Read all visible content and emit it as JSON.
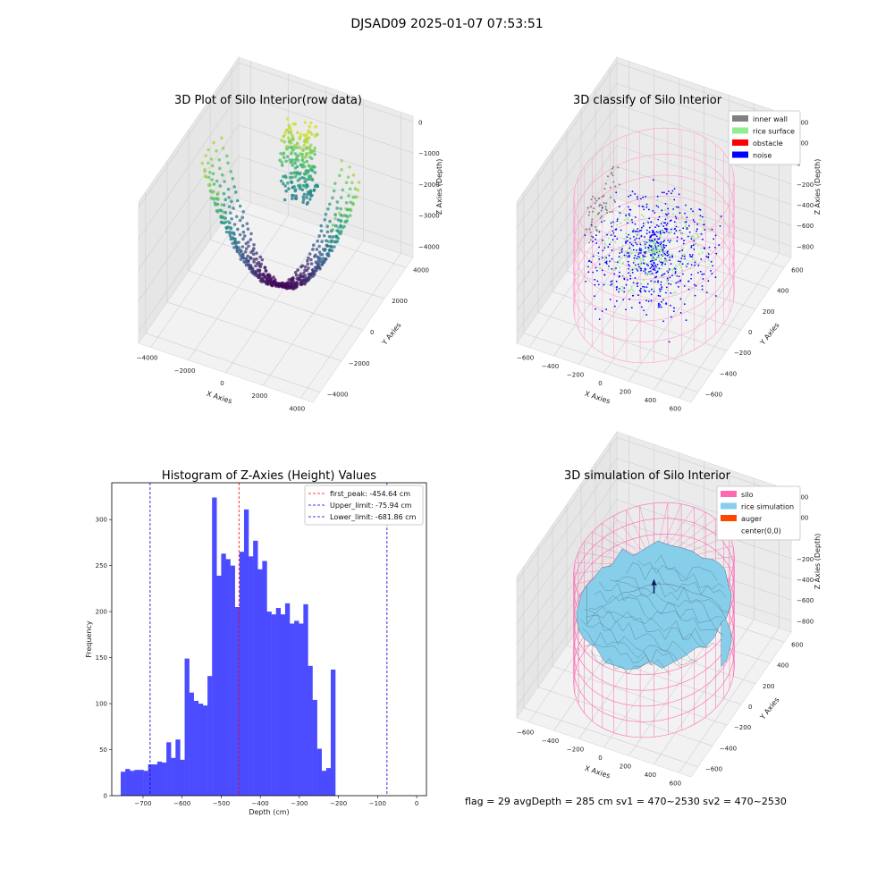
{
  "suptitle": "DJSAD09 2025-01-07 07:53:51",
  "footer": "flag = 29  avgDepth = 285 cm  sv1 = 470~2530  sv2 = 470~2530",
  "chart_data": [
    {
      "type": "scatter",
      "projection": "3d",
      "title": "3D Plot of Silo Interior(row data)",
      "xlabel": "X Axies",
      "ylabel": "Y Axies",
      "zlabel": "Z Axies (Depth)",
      "xticks": [
        "−4000",
        "−2000",
        "0",
        "2000",
        "4000"
      ],
      "yticks": [
        "−4000",
        "−2000",
        "0",
        "2000",
        "4000"
      ],
      "zticks": [
        "0",
        "−1000",
        "−2000",
        "−3000",
        "−4000"
      ],
      "xlim": [
        -4500,
        4500
      ],
      "ylim": [
        -4500,
        4500
      ],
      "zlim": [
        -4500,
        200
      ],
      "colormap": "viridis"
    },
    {
      "type": "scatter",
      "projection": "3d",
      "title": "3D classify of Silo Interior",
      "xlabel": "X Axies",
      "ylabel": "Y Axies",
      "zlabel": "Z Axies (Depth)",
      "xticks": [
        "−600",
        "−400",
        "−200",
        "0",
        "200",
        "400",
        "600"
      ],
      "yticks": [
        "−600",
        "−400",
        "−200",
        "0",
        "200",
        "400",
        "600"
      ],
      "zticks": [
        "400",
        "200",
        "0",
        "−200",
        "−400",
        "−600",
        "−800"
      ],
      "xlim": [
        -700,
        700
      ],
      "ylim": [
        -700,
        700
      ],
      "zlim": [
        -900,
        450
      ],
      "legend": [
        {
          "label": "inner wall",
          "color": "#808080"
        },
        {
          "label": "rice surface",
          "color": "#90ee90"
        },
        {
          "label": "obstacle",
          "color": "#ff0000"
        },
        {
          "label": "noise",
          "color": "#0000ff"
        }
      ],
      "wire_color": "#ff9fd0"
    },
    {
      "type": "bar",
      "title": "Histogram of Z-Axies (Height) Values",
      "xlabel": "Depth (cm)",
      "ylabel": "Frequency",
      "xlim": [
        -780,
        25
      ],
      "ylim": [
        0,
        340
      ],
      "xticks": [
        -700,
        -600,
        -500,
        -400,
        -300,
        -200,
        -100,
        0
      ],
      "yticks": [
        0,
        50,
        100,
        150,
        200,
        250,
        300
      ],
      "bin_start": -757,
      "bin_width": 11.68,
      "values": [
        26,
        29,
        27,
        28,
        28,
        27,
        34,
        34,
        37,
        36,
        58,
        41,
        61,
        39,
        149,
        112,
        103,
        100,
        98,
        130,
        324,
        239,
        263,
        257,
        250,
        205,
        265,
        311,
        260,
        277,
        246,
        255,
        200,
        197,
        204,
        197,
        209,
        187,
        190,
        187,
        208,
        141,
        104,
        51,
        27,
        30,
        137
      ],
      "bar_color": "#4b4bff",
      "vlines": [
        {
          "label": "first_peak: -454.64 cm",
          "x": -454.64,
          "color": "#ff0000"
        },
        {
          "label": "Upper_limit: -75.94 cm",
          "x": -75.94,
          "color": "#0000cc"
        },
        {
          "label": "Lower_limit: -681.86 cm",
          "x": -681.86,
          "color": "#0000cc"
        }
      ]
    },
    {
      "type": "surface",
      "projection": "3d",
      "title": "3D simulation of Silo Interior",
      "xlabel": "X Axies",
      "ylabel": "Y Axies",
      "zlabel": "Z Axies (Depth)",
      "xticks": [
        "−600",
        "−400",
        "−200",
        "0",
        "200",
        "400",
        "600"
      ],
      "yticks": [
        "−600",
        "−400",
        "−200",
        "0",
        "200",
        "400",
        "600"
      ],
      "zticks": [
        "400",
        "200",
        "0",
        "−200",
        "−400",
        "−600",
        "−800"
      ],
      "xlim": [
        -700,
        700
      ],
      "ylim": [
        -700,
        700
      ],
      "zlim": [
        -900,
        450
      ],
      "legend": [
        {
          "label": "silo",
          "color": "#ff69b4"
        },
        {
          "label": "rice simulation",
          "color": "#87ceeb"
        },
        {
          "label": "auger",
          "color": "#ff4500"
        },
        {
          "label": "center(0,0)",
          "color": "#ffffff"
        }
      ]
    }
  ]
}
